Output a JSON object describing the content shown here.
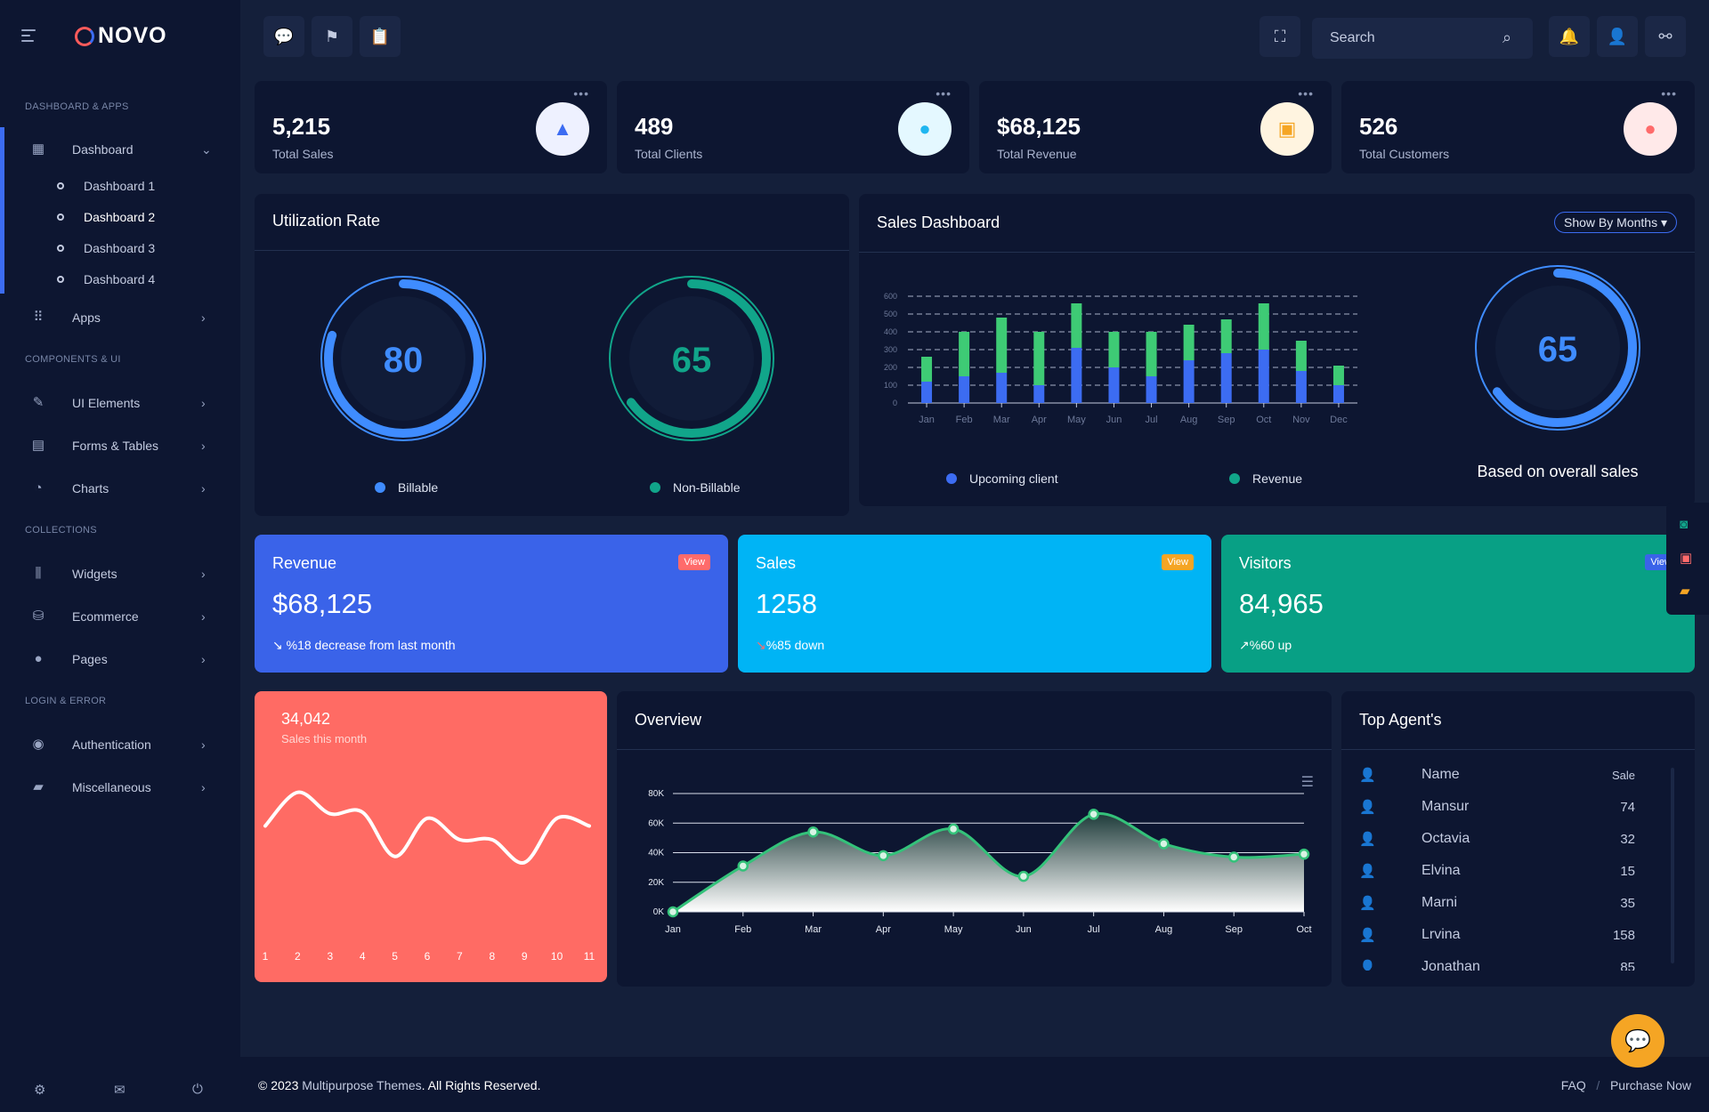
{
  "brand": "NOVO",
  "sidebar": {
    "sections": [
      "Dashboard & Apps",
      "Components & UI",
      "Collections",
      "Login & Error"
    ],
    "items": [
      {
        "label": "Dashboard",
        "icon": "grid-icon"
      },
      {
        "label": "Apps",
        "icon": "apps-icon"
      },
      {
        "label": "UI Elements",
        "icon": "pencil-icon"
      },
      {
        "label": "Forms & Tables",
        "icon": "document-icon"
      },
      {
        "label": "Charts",
        "icon": "pie-icon"
      },
      {
        "label": "Widgets",
        "icon": "library-icon"
      },
      {
        "label": "Ecommerce",
        "icon": "basket-icon"
      },
      {
        "label": "Pages",
        "icon": "person-icon"
      },
      {
        "label": "Authentication",
        "icon": "lock-icon"
      },
      {
        "label": "Miscellaneous",
        "icon": "chat-icon"
      }
    ],
    "sub_items": [
      "Dashboard 1",
      "Dashboard 2",
      "Dashboard 3",
      "Dashboard 4"
    ]
  },
  "search": {
    "placeholder": "Search"
  },
  "stats": [
    {
      "value": "5,215",
      "label": "Total Sales",
      "circle_bg": "#eef1ff",
      "icon_color": "#3c6cf2"
    },
    {
      "value": "489",
      "label": "Total Clients",
      "circle_bg": "#e4f8ff",
      "icon_color": "#1fb6f0"
    },
    {
      "value": "$68,125",
      "label": "Total Revenue",
      "circle_bg": "#fff4e0",
      "icon_color": "#f5a524"
    },
    {
      "value": "526",
      "label": "Total Customers",
      "circle_bg": "#ffe9e9",
      "icon_color": "#ff6b6b"
    }
  ],
  "utilization": {
    "title": "Utilization Rate",
    "gauges": [
      {
        "value": 80,
        "label": "Billable",
        "color": "#3f8cff"
      },
      {
        "value": 65,
        "label": "Non-Billable",
        "color": "#11a58a"
      }
    ]
  },
  "sales_dashboard": {
    "title": "Sales Dashboard",
    "filter_label": "Show By Months",
    "gauge_value": 65,
    "gauge_caption": "Based on overall sales",
    "legend": [
      "Upcoming client",
      "Revenue"
    ]
  },
  "colored_cards": [
    {
      "title": "Revenue",
      "value": "$68,125",
      "sub": "%18 decrease from last month",
      "badge": "View",
      "bg": "#3a63e9",
      "badge_bg": "#ff6b6b"
    },
    {
      "title": "Sales",
      "value": "1258",
      "sub": "%85 down",
      "badge": "View",
      "bg": "#00b4f5",
      "badge_bg": "#f5a524"
    },
    {
      "title": "Visitors",
      "value": "84,965",
      "sub": "%60 up",
      "badge": "View",
      "bg": "#08a085",
      "badge_bg": "#3a63e9"
    }
  ],
  "sales_month": {
    "value": "34,042",
    "label": "Sales this month"
  },
  "overview": {
    "title": "Overview"
  },
  "top_agents": {
    "title": "Top Agent's",
    "headers": {
      "name": "Name",
      "sale": "Sale"
    },
    "rows": [
      {
        "name": "Mansur",
        "sale": "74"
      },
      {
        "name": "Octavia",
        "sale": "32"
      },
      {
        "name": "Elvina",
        "sale": "15"
      },
      {
        "name": "Marni",
        "sale": "35"
      },
      {
        "name": "Lrvina",
        "sale": "158"
      },
      {
        "name": "Jonathan",
        "sale": "85"
      }
    ]
  },
  "footer": {
    "year": "© 2023",
    "company": "Multipurpose Themes",
    "rights": ". All Rights Reserved.",
    "faq": "FAQ",
    "sep": "/",
    "purchase": "Purchase Now"
  },
  "chart_data": [
    {
      "type": "bar",
      "title": "Sales Dashboard",
      "categories": [
        "Jan",
        "Feb",
        "Mar",
        "Apr",
        "May",
        "Jun",
        "Jul",
        "Aug",
        "Sep",
        "Oct",
        "Nov",
        "Dec"
      ],
      "series": [
        {
          "name": "Upcoming client",
          "values": [
            120,
            150,
            170,
            100,
            310,
            200,
            150,
            240,
            280,
            300,
            180,
            100
          ],
          "color": "#3c6cf2"
        },
        {
          "name": "Revenue",
          "values": [
            140,
            250,
            310,
            300,
            250,
            200,
            250,
            200,
            190,
            260,
            170,
            110
          ],
          "color": "#3ecb75"
        }
      ],
      "ylim": [
        0,
        600
      ],
      "yticks": [
        0,
        100,
        200,
        300,
        400,
        500,
        600
      ],
      "stacked": true,
      "grid": true
    },
    {
      "type": "area",
      "title": "Overview",
      "x": [
        "Jan",
        "Feb",
        "Mar",
        "Apr",
        "May",
        "Jun",
        "Jul",
        "Aug",
        "Sep",
        "Oct"
      ],
      "values": [
        0,
        31000,
        54000,
        38000,
        56000,
        24000,
        66000,
        46000,
        37000,
        39000
      ],
      "ylim": [
        0,
        80000
      ],
      "yticks": [
        "0K",
        "20K",
        "40K",
        "60K",
        "80K"
      ],
      "color": "#34c27a"
    },
    {
      "type": "line",
      "title": "Sales this month",
      "x": [
        "1",
        "2",
        "3",
        "4",
        "5",
        "6",
        "7",
        "8",
        "9",
        "10",
        "11"
      ],
      "values": [
        40,
        62,
        48,
        49,
        20,
        45,
        31,
        31,
        16,
        45,
        40
      ],
      "color": "#ffffff"
    }
  ]
}
